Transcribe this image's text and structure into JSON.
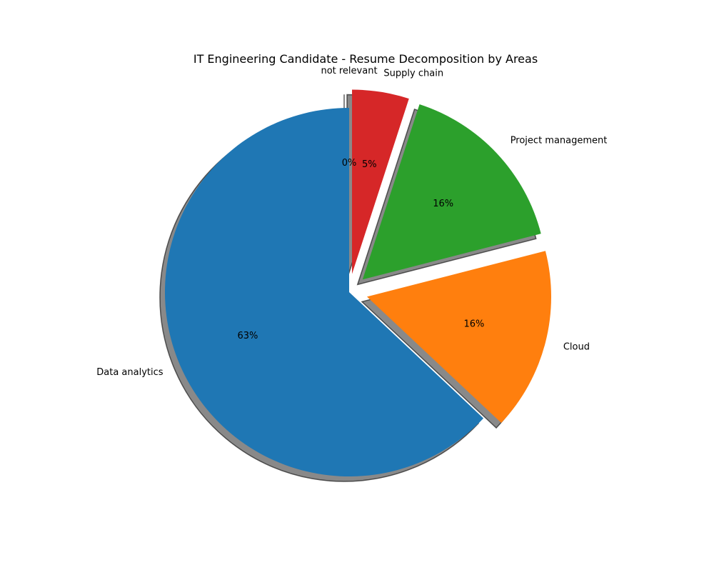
{
  "chart_data": {
    "type": "pie",
    "title": "IT Engineering Candidate - Resume Decomposition by Areas",
    "start_angle_deg": 90,
    "direction": "counterclockwise",
    "shadow": true,
    "slices": [
      {
        "label": "Data analytics",
        "value": 63,
        "pct_label": "63%",
        "color": "#1f77b4",
        "exploded": false
      },
      {
        "label": "Cloud",
        "value": 16,
        "pct_label": "16%",
        "color": "#ff7f0e",
        "exploded": true
      },
      {
        "label": "Project management",
        "value": 16,
        "pct_label": "16%",
        "color": "#2ca02c",
        "exploded": true
      },
      {
        "label": "Supply chain",
        "value": 5,
        "pct_label": "5%",
        "color": "#d62728",
        "exploded": true
      },
      {
        "label": "not relevant",
        "value": 0,
        "pct_label": "0%",
        "color": "#9467bd",
        "exploded": true
      }
    ]
  }
}
